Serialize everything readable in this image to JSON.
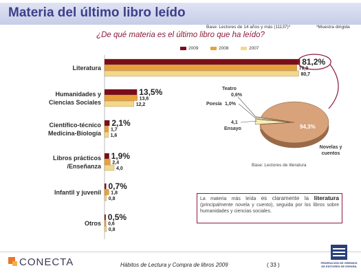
{
  "header": {
    "title": "Materia del último libro leído",
    "base_note": "Base: Lectores de 14 años y más (11137)*",
    "muestra_note": "*Muestra dirigida"
  },
  "question": "¿De qué materia es el último libro que ha leído?",
  "colors": {
    "y2009": "#7a0d1a",
    "y2008": "#e8a23a",
    "y2007": "#f2d98a",
    "accent": "#8b1a3a",
    "pie_main": "#d8a27a"
  },
  "chart_data": [
    {
      "type": "bar",
      "orientation": "horizontal",
      "legend_position": "top",
      "categories": [
        "Literatura",
        "Humanidades y Ciencias Sociales",
        "Científico-técnico Medicina-Biología",
        "Libros prácticos /Enseñanza",
        "Infantil y juvenil",
        "Otros"
      ],
      "category_lines": [
        [
          "Literatura"
        ],
        [
          "Humanidades y",
          "Ciencias Sociales"
        ],
        [
          "Científico-técnico",
          "Medicina-Biología"
        ],
        [
          "Libros prácticos",
          "/Enseñanza"
        ],
        [
          "Infantil y juvenil"
        ],
        [
          "Otros"
        ]
      ],
      "series": [
        {
          "name": "2009",
          "values": [
            81.2,
            13.5,
            2.1,
            1.9,
            0.7,
            0.5
          ],
          "labels": [
            "81,2%",
            "13,5%",
            "2,1%",
            "1,9%",
            "0,7%",
            "0,5%"
          ]
        },
        {
          "name": "2008",
          "values": [
            79.9,
            13.6,
            1.7,
            2.4,
            1.8,
            0.6
          ],
          "labels": [
            "79,9",
            "13,6",
            "1,7",
            "2,4",
            "1,8",
            "0,6"
          ]
        },
        {
          "name": "2007",
          "values": [
            80.7,
            12.2,
            1.6,
            4.0,
            0.8,
            0.8
          ],
          "labels": [
            "80,7",
            "12,2",
            "1,6",
            "4,0",
            "0,8",
            "0,8"
          ]
        }
      ]
    },
    {
      "type": "pie",
      "slices": [
        {
          "name": "Novelas y cuentos",
          "value": 94.3,
          "label": "94,3%"
        },
        {
          "name": "Ensayo",
          "value": 4.1,
          "label": "4,1"
        },
        {
          "name": "Poesía",
          "value": 1.0,
          "label": "1,0%"
        },
        {
          "name": "Teatro",
          "value": 0.6,
          "label": "0,6%"
        }
      ],
      "base_label": "Base: Lectores de literatura"
    }
  ],
  "info_box": {
    "part1": "La materia más leída ",
    "part2": "es claramente la ",
    "bold": "literatura",
    "part3": " (principalmente novela y cuento), seguida por los libros sobre humanidades y ciencias sociales."
  },
  "footer": {
    "brand": "CONECTA",
    "text": "Hábitos de Lectura y Compra de libros 2009",
    "page": "( 33 )",
    "federation": "FEDERACIÓN DE GREMIOS DE EDITORES DE ESPAÑA"
  }
}
